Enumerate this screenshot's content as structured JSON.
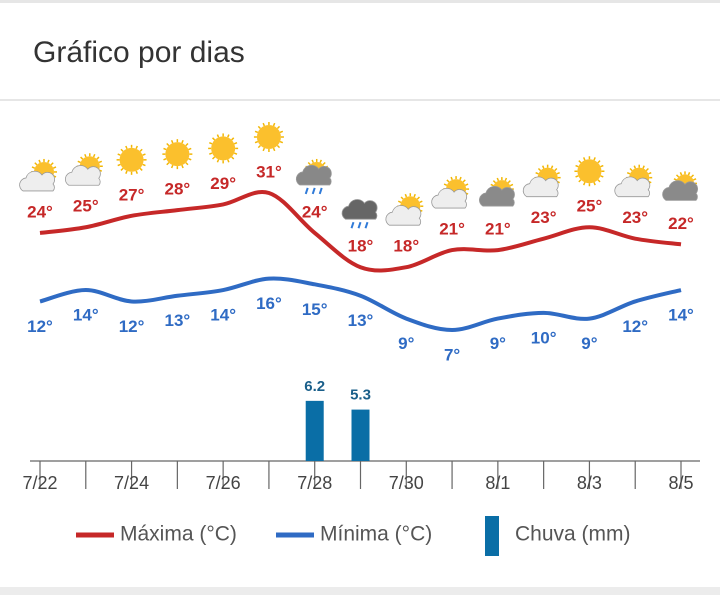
{
  "title": "Gráfico por dias",
  "chart_data": {
    "type": "combo",
    "categories": [
      "7/22",
      null,
      "7/24",
      null,
      "7/26",
      null,
      "7/28",
      null,
      "7/30",
      null,
      "8/1",
      null,
      "8/3",
      null,
      "8/5"
    ],
    "series": [
      {
        "name": "Máxima (°C)",
        "color": "#c62828",
        "kind": "line",
        "values": [
          24,
          25,
          27,
          28,
          29,
          31,
          24,
          18,
          18,
          21,
          21,
          23,
          25,
          23,
          22
        ],
        "value_labels": [
          "24°",
          "25°",
          "27°",
          "28°",
          "29°",
          "31°",
          "24°",
          "18°",
          "18°",
          "21°",
          "21°",
          "23°",
          "25°",
          "23°",
          "22°"
        ]
      },
      {
        "name": "Mínima (°C)",
        "color": "#2f6bc4",
        "kind": "line",
        "values": [
          12,
          14,
          12,
          13,
          14,
          16,
          15,
          13,
          9,
          7,
          9,
          10,
          9,
          12,
          14
        ],
        "value_labels": [
          "12°",
          "14°",
          "12°",
          "13°",
          "14°",
          "16°",
          "15°",
          "13°",
          "9°",
          "7°",
          "9°",
          "10°",
          "9°",
          "12°",
          "14°"
        ]
      },
      {
        "name": "Chuva (mm)",
        "color": "#0a6ea6",
        "kind": "bar",
        "values": [
          null,
          null,
          null,
          null,
          null,
          null,
          6.2,
          5.3,
          null,
          null,
          null,
          null,
          null,
          null,
          null
        ]
      }
    ]
  }
}
